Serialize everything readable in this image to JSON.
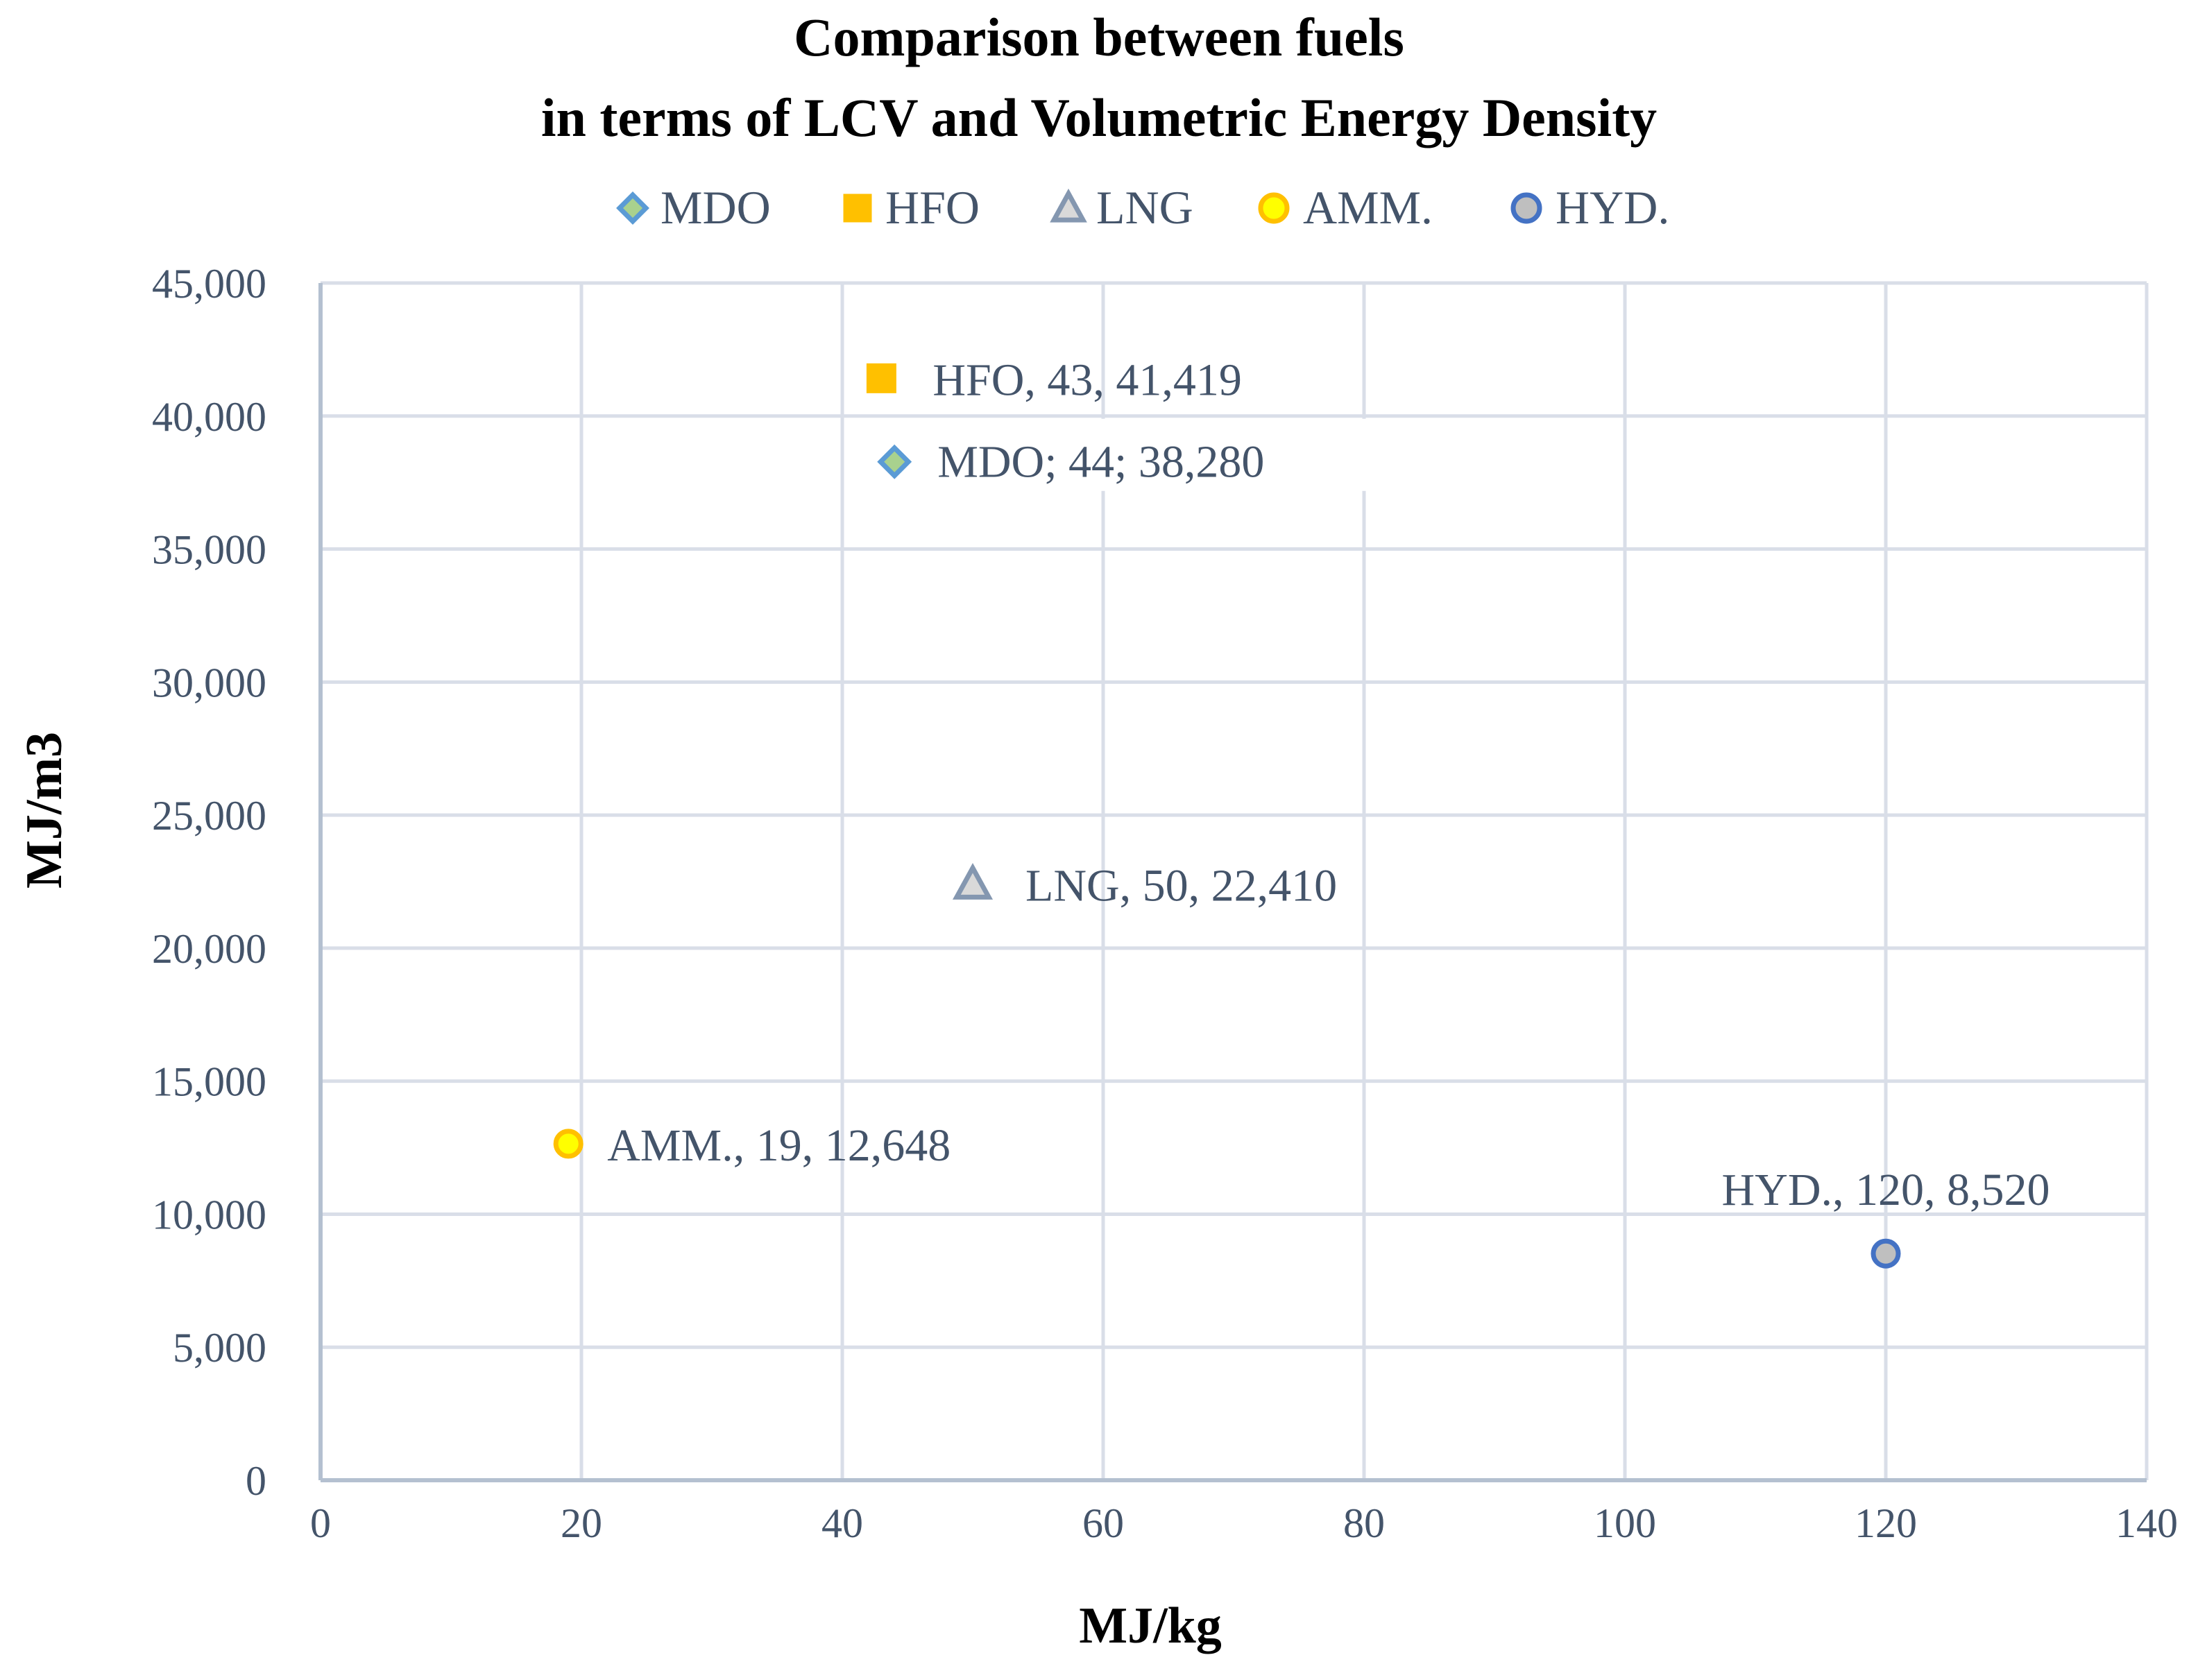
{
  "chart_data": {
    "type": "scatter",
    "title": [
      "Comparison between fuels",
      "in terms of LCV and Volumetric Energy Density"
    ],
    "xlabel": "MJ/kg",
    "ylabel": "MJ/m3",
    "xlim": [
      0,
      140
    ],
    "ylim": [
      0,
      45000
    ],
    "x_ticks": [
      0,
      20,
      40,
      60,
      80,
      100,
      120,
      140
    ],
    "x_tick_labels": [
      "0",
      "20",
      "40",
      "60",
      "80",
      "100",
      "120",
      "140"
    ],
    "y_ticks": [
      0,
      5000,
      10000,
      15000,
      20000,
      25000,
      30000,
      35000,
      40000,
      45000
    ],
    "y_tick_labels": [
      "0",
      "5,000",
      "10,000",
      "15,000",
      "20,000",
      "25,000",
      "30,000",
      "35,000",
      "40,000",
      "45,000"
    ],
    "grid": true,
    "legend_position": "top",
    "series": [
      {
        "name": "MDO",
        "marker": "diamond",
        "fill": "#A9D18E",
        "stroke": "#5B9BD5",
        "x": 44,
        "y": 38280,
        "label": "MDO; 44; 38,280"
      },
      {
        "name": "HFO",
        "marker": "square",
        "fill": "#FFC000",
        "stroke": "#FFC000",
        "x": 43,
        "y": 41419,
        "label": "HFO, 43, 41,419"
      },
      {
        "name": "LNG",
        "marker": "triangle",
        "fill": "#D9D9D9",
        "stroke": "#8497B0",
        "x": 50,
        "y": 22410,
        "label": "LNG, 50, 22,410"
      },
      {
        "name": "AMM.",
        "marker": "circle",
        "fill": "#FFFF00",
        "stroke": "#FFC000",
        "x": 19,
        "y": 12648,
        "label": "AMM., 19, 12,648"
      },
      {
        "name": "HYD.",
        "marker": "circle",
        "fill": "#BFBFBF",
        "stroke": "#4472C4",
        "x": 120,
        "y": 8520,
        "label": "HYD., 120, 8,520"
      }
    ]
  }
}
